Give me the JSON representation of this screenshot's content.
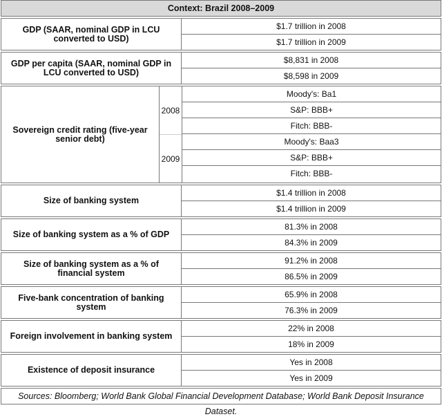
{
  "title": "Context: Brazil 2008–2009",
  "sections": [
    {
      "label": "GDP (SAAR, nominal GDP in LCU converted to USD)",
      "values": [
        "$1.7 trillion in 2008",
        "$1.7 trillion in 2009"
      ]
    },
    {
      "label": "GDP per capita (SAAR, nominal GDP in LCU converted to USD)",
      "values": [
        "$8,831 in 2008",
        "$8,598 in 2009"
      ]
    },
    {
      "label": "Sovereign credit rating (five-year senior debt)",
      "years": [
        {
          "year": "2008",
          "values": [
            "Moody's: Ba1",
            "S&P: BBB+",
            "Fitch: BBB-"
          ]
        },
        {
          "year": "2009",
          "values": [
            "Moody's: Baa3",
            "S&P: BBB+",
            "Fitch: BBB-"
          ]
        }
      ]
    },
    {
      "label": "Size of banking system",
      "values": [
        "$1.4 trillion in 2008",
        "$1.4 trillion in 2009"
      ]
    },
    {
      "label": "Size of banking system as a % of GDP",
      "values": [
        "81.3% in 2008",
        "84.3% in 2009"
      ]
    },
    {
      "label": "Size of banking system as a % of financial system",
      "values": [
        "91.2% in 2008",
        "86.5% in 2009"
      ]
    },
    {
      "label": "Five-bank concentration of banking system",
      "values": [
        "65.9% in 2008",
        "76.3% in 2009"
      ]
    },
    {
      "label": "Foreign involvement in banking system",
      "values": [
        "22% in 2008",
        "18% in 2009"
      ]
    },
    {
      "label": "Existence of deposit insurance",
      "values": [
        "Yes in 2008",
        "Yes in 2009"
      ]
    }
  ],
  "footer": "Sources: Bloomberg; World Bank Global Financial Development Database; World Bank Deposit Insurance Dataset."
}
